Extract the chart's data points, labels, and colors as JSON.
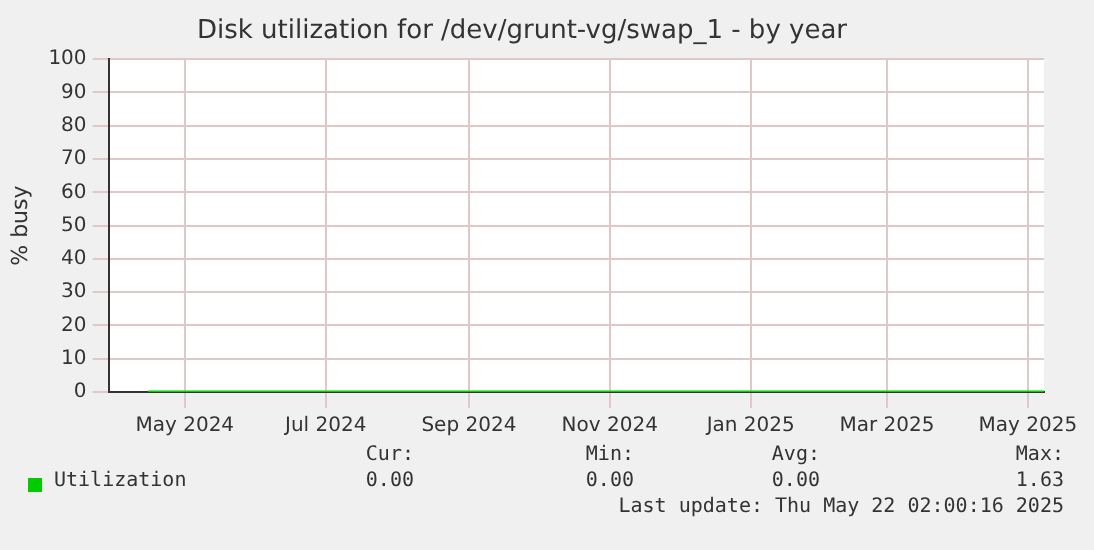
{
  "chart_data": {
    "type": "line",
    "title": "Disk utilization for /dev/grunt-vg/swap_1 - by year",
    "ylabel": "% busy",
    "x": [
      "2024-04-15",
      "2024-05-15",
      "2024-06-15",
      "2024-07-15",
      "2024-08-15",
      "2024-09-15",
      "2024-10-15",
      "2024-11-15",
      "2024-12-15",
      "2025-01-15",
      "2025-02-15",
      "2025-03-15",
      "2025-04-15",
      "2025-05-08"
    ],
    "series": [
      {
        "name": "Utilization",
        "color": "#00cc00",
        "values": [
          0,
          0,
          0,
          0,
          0,
          0,
          0,
          0,
          0,
          0,
          0,
          0,
          0,
          0
        ]
      }
    ],
    "xlim": [
      "2024-03-29",
      "2025-05-08"
    ],
    "xticks": [
      {
        "value": "2024-05-01",
        "label": "May 2024"
      },
      {
        "value": "2024-07-01",
        "label": "Jul 2024"
      },
      {
        "value": "2024-09-01",
        "label": "Sep 2024"
      },
      {
        "value": "2024-11-01",
        "label": "Nov 2024"
      },
      {
        "value": "2025-01-01",
        "label": "Jan 2025"
      },
      {
        "value": "2025-03-01",
        "label": "Mar 2025"
      },
      {
        "value": "2025-05-01",
        "label": "May 2025"
      }
    ],
    "ylim": [
      0,
      100
    ],
    "yticks": [
      0,
      10,
      20,
      30,
      40,
      50,
      60,
      70,
      80,
      90,
      100
    ],
    "grid": true,
    "legend": "bottom left",
    "marker": "none",
    "line_style": "solid",
    "annotations": [
      "Cur:",
      "0.00",
      "Min:",
      "0.00",
      "Avg:",
      "0.00",
      "Max:",
      "1.63",
      "Last update: Thu May 22 02:00:16 2025"
    ]
  }
}
